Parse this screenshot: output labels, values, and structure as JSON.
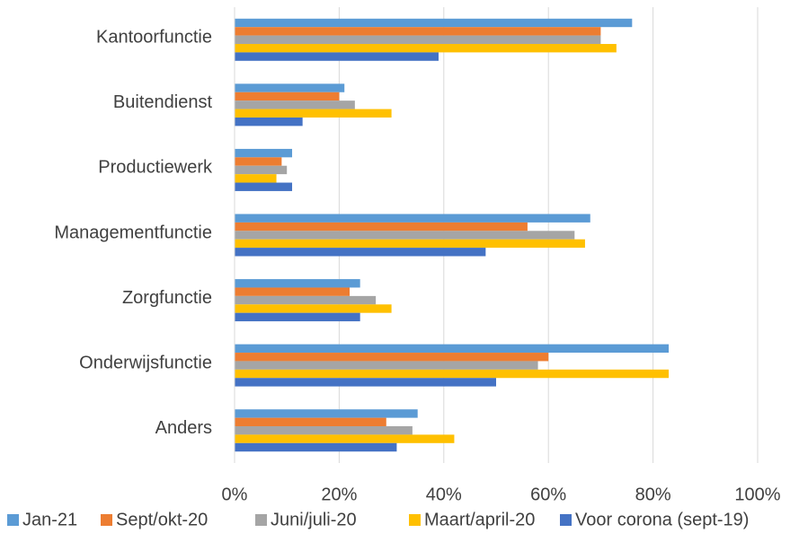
{
  "chart_data": {
    "type": "bar",
    "orientation": "horizontal",
    "categories": [
      "Kantoorfunctie",
      "Buitendienst",
      "Productiewerk",
      "Managementfunctie",
      "Zorgfunctie",
      "Onderwijsfunctie",
      "Anders"
    ],
    "series": [
      {
        "name": "Jan-21",
        "color": "#5b9bd5",
        "values": [
          76,
          21,
          11,
          68,
          24,
          83,
          35
        ]
      },
      {
        "name": "Sept/okt-20",
        "color": "#ed7d31",
        "values": [
          70,
          20,
          9,
          56,
          22,
          60,
          29
        ]
      },
      {
        "name": "Juni/juli-20",
        "color": "#a5a5a5",
        "values": [
          70,
          23,
          10,
          65,
          27,
          58,
          34
        ]
      },
      {
        "name": "Maart/april-20",
        "color": "#ffc000",
        "values": [
          73,
          30,
          8,
          67,
          30,
          83,
          42
        ]
      },
      {
        "name": "Voor corona (sept-19)",
        "color": "#4472c4",
        "values": [
          39,
          13,
          11,
          48,
          24,
          50,
          31
        ]
      }
    ],
    "xlim": [
      0,
      100
    ],
    "xticks": [
      {
        "value": 0,
        "label": "0%"
      },
      {
        "value": 20,
        "label": "20%"
      },
      {
        "value": 40,
        "label": "40%"
      },
      {
        "value": 60,
        "label": "60%"
      },
      {
        "value": 80,
        "label": "80%"
      },
      {
        "value": 100,
        "label": "100%"
      }
    ],
    "grid": true,
    "legend": "bottom"
  }
}
